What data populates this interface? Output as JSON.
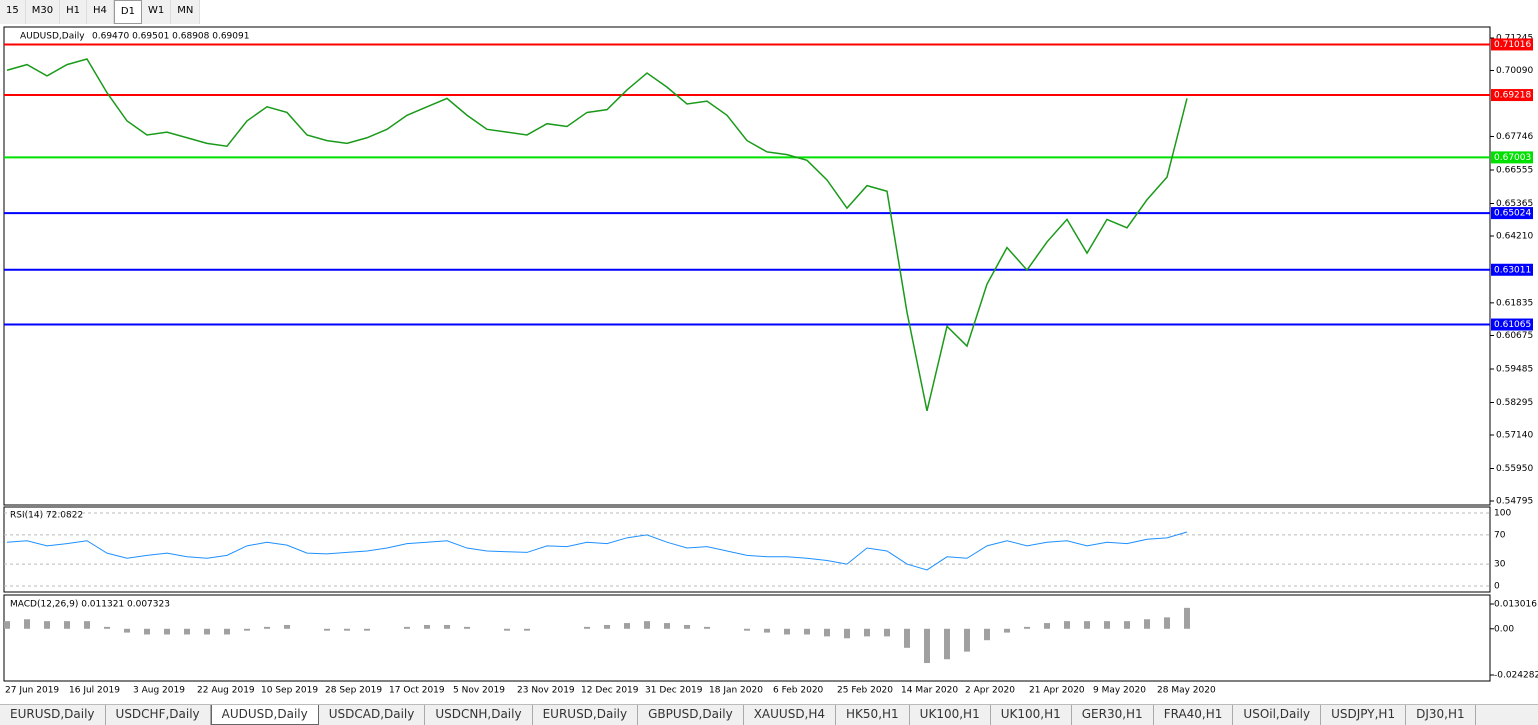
{
  "toolbar": {
    "timeframes": [
      "15",
      "M30",
      "H1",
      "H4",
      "D1",
      "W1",
      "MN"
    ],
    "active": 4
  },
  "chart_data": {
    "type": "line",
    "title": "AUDUSD,Daily",
    "ohlc_text": "0.69470 0.69501 0.68908 0.69091",
    "color": "#1a9a1a",
    "values": [
      0.701,
      0.703,
      0.699,
      0.703,
      0.705,
      0.693,
      0.683,
      0.678,
      0.679,
      0.677,
      0.675,
      0.674,
      0.683,
      0.688,
      0.686,
      0.678,
      0.676,
      0.675,
      0.677,
      0.68,
      0.685,
      0.688,
      0.691,
      0.685,
      0.68,
      0.679,
      0.678,
      0.682,
      0.681,
      0.686,
      0.687,
      0.694,
      0.7,
      0.695,
      0.689,
      0.69,
      0.685,
      0.676,
      0.672,
      0.671,
      0.669,
      0.662,
      0.652,
      0.66,
      0.658,
      0.615,
      0.58,
      0.61,
      0.603,
      0.625,
      0.638,
      0.63,
      0.64,
      0.648,
      0.636,
      0.648,
      0.645,
      0.655,
      0.663,
      0.691
    ],
    "ylim": [
      0.54795,
      0.71245
    ],
    "yticks": [
      0.71245,
      {
        "value": 0.7009,
        "label": "0.70090"
      },
      0.67746,
      0.66555,
      0.65365,
      {
        "value": 0.6421,
        "label": "0.64210"
      },
      0.61835,
      0.60675,
      0.59485,
      0.58295,
      {
        "value": 0.5714,
        "label": "0.57140"
      },
      {
        "value": 0.5595,
        "label": "0.55950"
      },
      0.54795
    ],
    "levels": [
      {
        "value": 0.71016,
        "color": "#ff0000"
      },
      {
        "value": 0.69218,
        "color": "#ff0000"
      },
      {
        "value": 0.67003,
        "color": "#00e000"
      },
      {
        "value": 0.65024,
        "color": "#0000ff"
      },
      {
        "value": 0.63011,
        "color": "#0000ff"
      },
      {
        "value": 0.61065,
        "color": "#0000ff"
      }
    ],
    "x_labels": [
      "27 Jun 2019",
      "16 Jul 2019",
      "3 Aug 2019",
      "22 Aug 2019",
      "10 Sep 2019",
      "28 Sep 2019",
      "17 Oct 2019",
      "5 Nov 2019",
      "23 Nov 2019",
      "12 Dec 2019",
      "31 Dec 2019",
      "18 Jan 2020",
      "6 Feb 2020",
      "25 Feb 2020",
      "14 Mar 2020",
      "2 Apr 2020",
      "21 Apr 2020",
      "9 May 2020",
      "28 May 2020"
    ]
  },
  "rsi": {
    "title": "RSI(14) 72.0822",
    "color": "#1e90ff",
    "ylim": [
      0,
      100
    ],
    "yticks": [
      100,
      70,
      30,
      0
    ],
    "values": [
      60,
      62,
      55,
      58,
      62,
      45,
      38,
      42,
      45,
      40,
      38,
      42,
      55,
      60,
      56,
      45,
      44,
      46,
      48,
      52,
      58,
      60,
      62,
      52,
      48,
      47,
      46,
      55,
      54,
      60,
      58,
      66,
      70,
      60,
      52,
      54,
      48,
      42,
      40,
      40,
      38,
      35,
      30,
      52,
      48,
      30,
      22,
      40,
      38,
      55,
      62,
      55,
      60,
      62,
      55,
      60,
      58,
      64,
      66,
      74
    ]
  },
  "macd": {
    "title": "MACD(12,26,9) 0.011321 0.007323",
    "color": "#a0a0a0",
    "ylim": [
      -0.024282,
      0.013016
    ],
    "yticks": [
      0.013016,
      {
        "value": 0,
        "label": "0.00"
      },
      -0.024282
    ],
    "values": [
      0.004,
      0.005,
      0.004,
      0.004,
      0.004,
      0.001,
      -0.002,
      -0.003,
      -0.003,
      -0.003,
      -0.003,
      -0.003,
      -0.001,
      0.001,
      0.002,
      0,
      -0.001,
      -0.001,
      -0.001,
      0,
      0.001,
      0.002,
      0.002,
      0.001,
      0,
      -0.001,
      -0.001,
      0,
      0,
      0.001,
      0.002,
      0.003,
      0.004,
      0.003,
      0.002,
      0.001,
      0,
      -0.001,
      -0.002,
      -0.003,
      -0.003,
      -0.004,
      -0.005,
      -0.004,
      -0.004,
      -0.01,
      -0.018,
      -0.016,
      -0.012,
      -0.006,
      -0.002,
      0.001,
      0.003,
      0.004,
      0.004,
      0.004,
      0.004,
      0.005,
      0.006,
      0.011
    ]
  },
  "tabs": [
    "EURUSD,Daily",
    "USDCHF,Daily",
    "AUDUSD,Daily",
    "USDCAD,Daily",
    "USDCNH,Daily",
    "EURUSD,Daily",
    "GBPUSD,Daily",
    "XAUUSD,H4",
    "HK50,H1",
    "UK100,H1",
    "UK100,H1",
    "GER30,H1",
    "FRA40,H1",
    "USOil,Daily",
    "USDJPY,H1",
    "DJ30,H1"
  ],
  "active_tab": 2
}
